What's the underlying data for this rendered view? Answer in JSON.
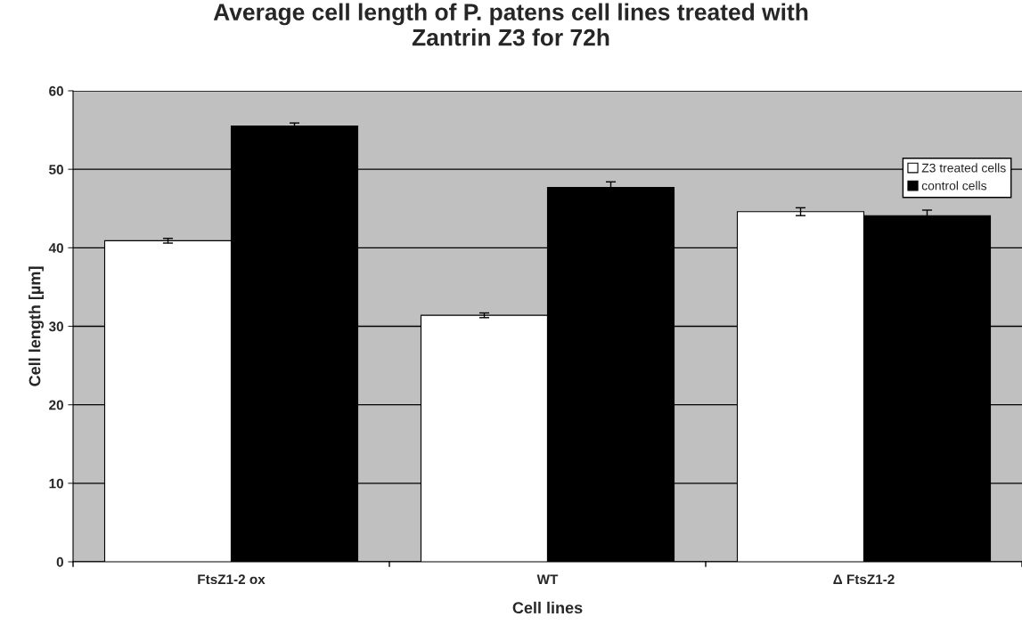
{
  "chart_data": {
    "type": "bar",
    "title": "Average cell length of P. patens cell lines treated with\nZantrin Z3 for 72h",
    "xlabel": "Cell lines",
    "ylabel": "Cell length [µm]",
    "categories": [
      "FtsZ1-2 ox",
      "WT",
      "Δ FtsZ1-2"
    ],
    "series": [
      {
        "name": "Z3 treated cells",
        "color": "#ffffff",
        "values": [
          40.9,
          31.4,
          44.6
        ],
        "errors": [
          0.3,
          0.3,
          0.5
        ]
      },
      {
        "name": "control cells",
        "color": "#000000",
        "values": [
          55.5,
          47.7,
          44.1
        ],
        "errors": [
          0.4,
          0.7,
          0.7
        ]
      }
    ],
    "ylim": [
      0,
      60
    ],
    "yticks": [
      0,
      10,
      20,
      30,
      40,
      50,
      60
    ],
    "grid": "y",
    "legend": "top right"
  }
}
